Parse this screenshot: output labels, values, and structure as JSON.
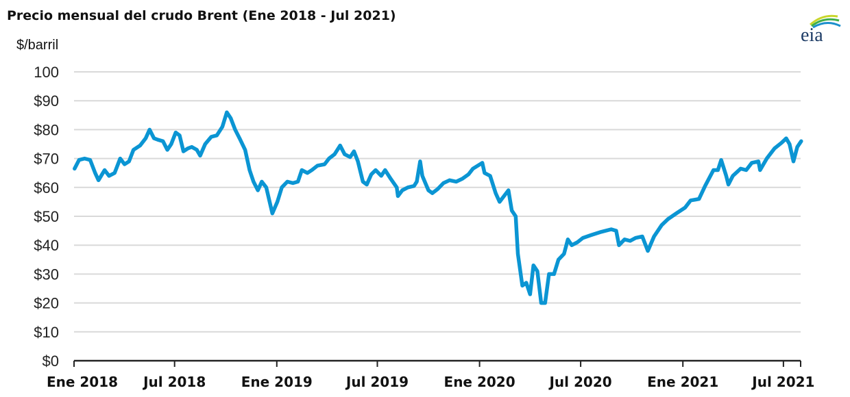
{
  "chart_data": {
    "type": "line",
    "title": "Precio mensual del crudo Brent (Ene 2018 - Jul 2021)",
    "ylabel": "$/barril",
    "xlabel": "",
    "ylim": [
      0,
      100
    ],
    "xlim": [
      "2018-01-01",
      "2021-08-01"
    ],
    "grid": true,
    "yticks": [
      {
        "value": 0,
        "label": "$0"
      },
      {
        "value": 10,
        "label": "$10"
      },
      {
        "value": 20,
        "label": "$20"
      },
      {
        "value": 30,
        "label": "$30"
      },
      {
        "value": 40,
        "label": "$40"
      },
      {
        "value": 50,
        "label": "$50"
      },
      {
        "value": 60,
        "label": "$60"
      },
      {
        "value": 70,
        "label": "$70"
      },
      {
        "value": 80,
        "label": "$80"
      },
      {
        "value": 90,
        "label": "$90"
      },
      {
        "value": 100,
        "label": "100"
      }
    ],
    "xticks": [
      {
        "date": "2018-01-01",
        "label": "Ene 2018"
      },
      {
        "date": "2018-07-01",
        "label": "Jul 2018"
      },
      {
        "date": "2019-01-01",
        "label": "Ene 2019"
      },
      {
        "date": "2019-07-01",
        "label": "Jul 2019"
      },
      {
        "date": "2020-01-01",
        "label": "Ene 2020"
      },
      {
        "date": "2020-07-01",
        "label": "Jul 2020"
      },
      {
        "date": "2021-01-01",
        "label": "Ene 2021"
      },
      {
        "date": "2021-07-01",
        "label": "Jul 2021"
      }
    ],
    "series": [
      {
        "color": "#0b95d3",
        "points": [
          [
            "2018-01-02",
            66.5
          ],
          [
            "2018-01-10",
            69.5
          ],
          [
            "2018-01-20",
            70
          ],
          [
            "2018-01-30",
            69.5
          ],
          [
            "2018-02-08",
            65
          ],
          [
            "2018-02-14",
            62.5
          ],
          [
            "2018-02-25",
            66
          ],
          [
            "2018-03-05",
            64
          ],
          [
            "2018-03-15",
            65
          ],
          [
            "2018-03-25",
            70
          ],
          [
            "2018-04-02",
            68
          ],
          [
            "2018-04-10",
            69
          ],
          [
            "2018-04-18",
            73
          ],
          [
            "2018-04-30",
            74.5
          ],
          [
            "2018-05-10",
            77
          ],
          [
            "2018-05-17",
            80
          ],
          [
            "2018-05-25",
            77
          ],
          [
            "2018-06-01",
            76.5
          ],
          [
            "2018-06-10",
            76
          ],
          [
            "2018-06-18",
            73
          ],
          [
            "2018-06-25",
            75
          ],
          [
            "2018-07-03",
            79
          ],
          [
            "2018-07-10",
            78
          ],
          [
            "2018-07-17",
            72.5
          ],
          [
            "2018-07-25",
            73.5
          ],
          [
            "2018-08-01",
            74
          ],
          [
            "2018-08-10",
            73
          ],
          [
            "2018-08-16",
            71
          ],
          [
            "2018-08-25",
            75
          ],
          [
            "2018-09-05",
            77.5
          ],
          [
            "2018-09-15",
            78
          ],
          [
            "2018-09-25",
            81
          ],
          [
            "2018-10-03",
            86
          ],
          [
            "2018-10-10",
            84
          ],
          [
            "2018-10-18",
            80
          ],
          [
            "2018-10-26",
            77
          ],
          [
            "2018-11-05",
            73
          ],
          [
            "2018-11-13",
            66
          ],
          [
            "2018-11-20",
            62
          ],
          [
            "2018-11-28",
            59
          ],
          [
            "2018-12-05",
            62
          ],
          [
            "2018-12-13",
            60
          ],
          [
            "2018-12-24",
            51
          ],
          [
            "2019-01-02",
            55
          ],
          [
            "2019-01-10",
            60
          ],
          [
            "2019-01-20",
            62
          ],
          [
            "2019-01-30",
            61.5
          ],
          [
            "2019-02-08",
            62
          ],
          [
            "2019-02-15",
            66
          ],
          [
            "2019-02-25",
            65
          ],
          [
            "2019-03-05",
            66
          ],
          [
            "2019-03-15",
            67.5
          ],
          [
            "2019-03-28",
            68
          ],
          [
            "2019-04-05",
            70
          ],
          [
            "2019-04-15",
            71.5
          ],
          [
            "2019-04-25",
            74.5
          ],
          [
            "2019-05-03",
            71.5
          ],
          [
            "2019-05-13",
            70.5
          ],
          [
            "2019-05-20",
            72.5
          ],
          [
            "2019-05-27",
            69
          ],
          [
            "2019-06-05",
            62
          ],
          [
            "2019-06-12",
            61
          ],
          [
            "2019-06-20",
            64.5
          ],
          [
            "2019-06-28",
            66
          ],
          [
            "2019-07-08",
            64
          ],
          [
            "2019-07-15",
            66
          ],
          [
            "2019-07-25",
            63
          ],
          [
            "2019-08-05",
            60
          ],
          [
            "2019-08-07",
            57
          ],
          [
            "2019-08-15",
            59
          ],
          [
            "2019-08-25",
            60
          ],
          [
            "2019-09-05",
            60.5
          ],
          [
            "2019-09-10",
            62
          ],
          [
            "2019-09-16",
            69
          ],
          [
            "2019-09-20",
            64
          ],
          [
            "2019-10-01",
            59
          ],
          [
            "2019-10-08",
            58
          ],
          [
            "2019-10-18",
            59.5
          ],
          [
            "2019-10-28",
            61.5
          ],
          [
            "2019-11-08",
            62.5
          ],
          [
            "2019-11-20",
            62
          ],
          [
            "2019-12-01",
            63
          ],
          [
            "2019-12-12",
            64.5
          ],
          [
            "2019-12-20",
            66.5
          ],
          [
            "2020-01-06",
            68.5
          ],
          [
            "2020-01-10",
            65
          ],
          [
            "2020-01-20",
            64
          ],
          [
            "2020-01-30",
            58
          ],
          [
            "2020-02-06",
            55
          ],
          [
            "2020-02-14",
            57
          ],
          [
            "2020-02-22",
            59
          ],
          [
            "2020-02-28",
            52
          ],
          [
            "2020-03-06",
            50
          ],
          [
            "2020-03-10",
            37
          ],
          [
            "2020-03-18",
            26
          ],
          [
            "2020-03-25",
            27
          ],
          [
            "2020-04-01",
            23
          ],
          [
            "2020-04-07",
            33
          ],
          [
            "2020-04-14",
            31
          ],
          [
            "2020-04-21",
            20
          ],
          [
            "2020-04-28",
            20
          ],
          [
            "2020-05-05",
            30
          ],
          [
            "2020-05-14",
            30
          ],
          [
            "2020-05-22",
            35
          ],
          [
            "2020-06-01",
            37
          ],
          [
            "2020-06-08",
            42
          ],
          [
            "2020-06-15",
            40
          ],
          [
            "2020-06-25",
            41
          ],
          [
            "2020-07-05",
            42.5
          ],
          [
            "2020-07-20",
            43.5
          ],
          [
            "2020-08-05",
            44.5
          ],
          [
            "2020-08-25",
            45.5
          ],
          [
            "2020-09-03",
            45
          ],
          [
            "2020-09-08",
            40
          ],
          [
            "2020-09-18",
            42
          ],
          [
            "2020-09-28",
            41.5
          ],
          [
            "2020-10-08",
            42.5
          ],
          [
            "2020-10-20",
            43
          ],
          [
            "2020-10-30",
            38
          ],
          [
            "2020-11-10",
            43
          ],
          [
            "2020-11-24",
            47
          ],
          [
            "2020-12-05",
            49
          ],
          [
            "2020-12-20",
            51
          ],
          [
            "2021-01-05",
            53
          ],
          [
            "2021-01-15",
            55.5
          ],
          [
            "2021-01-30",
            56
          ],
          [
            "2021-02-10",
            60.5
          ],
          [
            "2021-02-25",
            66
          ],
          [
            "2021-03-05",
            66
          ],
          [
            "2021-03-11",
            69.5
          ],
          [
            "2021-03-20",
            64
          ],
          [
            "2021-03-24",
            61
          ],
          [
            "2021-04-01",
            64
          ],
          [
            "2021-04-15",
            66.5
          ],
          [
            "2021-04-25",
            66
          ],
          [
            "2021-05-05",
            68.5
          ],
          [
            "2021-05-17",
            69
          ],
          [
            "2021-05-20",
            66
          ],
          [
            "2021-06-01",
            70
          ],
          [
            "2021-06-15",
            73.5
          ],
          [
            "2021-06-28",
            75.5
          ],
          [
            "2021-07-06",
            77
          ],
          [
            "2021-07-12",
            75
          ],
          [
            "2021-07-19",
            69
          ],
          [
            "2021-07-26",
            74
          ],
          [
            "2021-08-02",
            76
          ]
        ]
      }
    ]
  },
  "logo": {
    "text": "eia"
  }
}
